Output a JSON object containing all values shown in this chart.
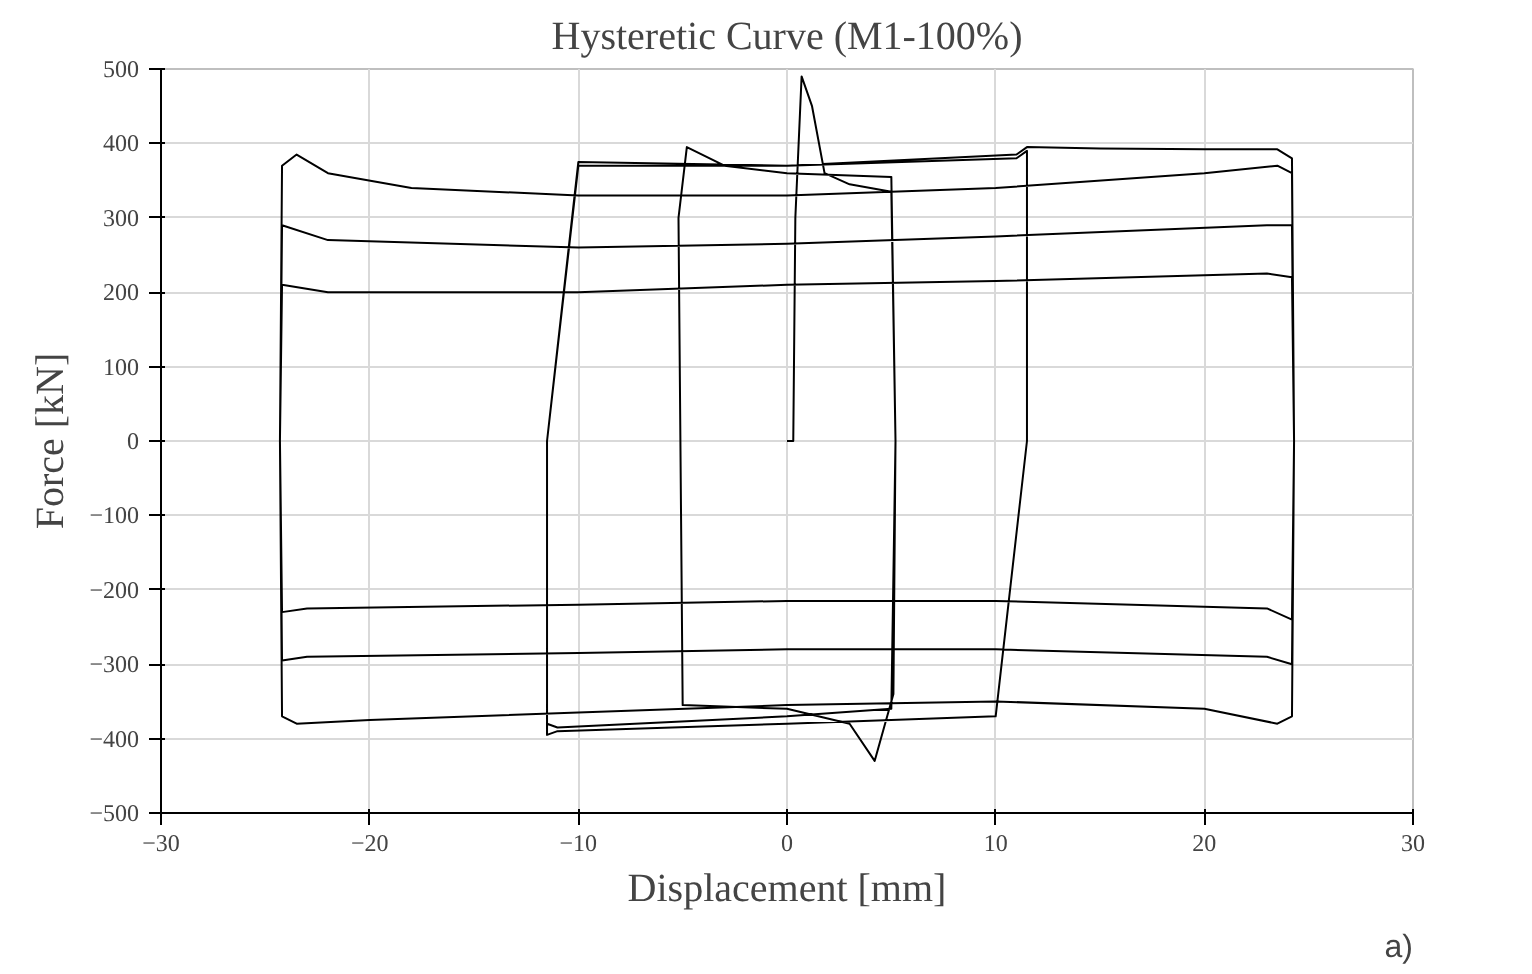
{
  "chart_data": {
    "type": "line",
    "title": "Hysteretic Curve (M1-100%)",
    "xlabel": "Displacement [mm]",
    "ylabel": "Force [kN]",
    "annotations": [
      "a)"
    ],
    "xlim": [
      -30,
      30
    ],
    "ylim": [
      -500,
      500
    ],
    "xticks": [
      -30,
      -20,
      -10,
      0,
      10,
      20,
      30
    ],
    "yticks": [
      -500,
      -400,
      -300,
      -200,
      -100,
      0,
      100,
      200,
      300,
      400,
      500
    ],
    "grid": true,
    "marker": "none",
    "line_style": "solid",
    "series": [
      {
        "color": "#000000",
        "x": [
          0,
          0.3,
          0.4,
          0.7,
          1.2,
          1.8,
          3,
          5,
          5.2,
          5.1,
          4.2,
          3,
          0,
          -5,
          -5.2,
          -4.8,
          -3,
          0,
          5,
          5.2,
          5.0,
          0,
          -11,
          -11.5,
          -11.5,
          -10,
          0,
          11,
          11.5,
          11.5,
          10,
          0,
          -11,
          -11.5,
          -11.5,
          -10,
          0,
          11,
          11.5,
          15,
          20,
          23.5,
          24.2,
          24.3,
          24.2,
          23.5,
          20,
          10,
          0,
          -10,
          -20,
          -23.5,
          -24.2,
          -24.3,
          -24.2,
          -23.5,
          -22,
          -18,
          -10,
          0,
          10,
          20,
          23.5,
          24.2,
          24.3,
          24.2,
          23,
          10,
          0,
          -10,
          -23,
          -24.2,
          -24.3,
          -24.2,
          -22,
          -10,
          0,
          10,
          23,
          24.2,
          24.3,
          24.2,
          23,
          10,
          0,
          -10,
          -23,
          -24.2,
          -24.3,
          -24.2,
          -22,
          -10,
          0,
          10,
          23,
          24.2,
          24.3
        ],
        "values": [
          0,
          0,
          300,
          490,
          450,
          360,
          345,
          335,
          0,
          -340,
          -430,
          -380,
          -360,
          -355,
          300,
          395,
          370,
          360,
          355,
          0,
          -360,
          -370,
          -385,
          -380,
          0,
          375,
          370,
          380,
          390,
          0,
          -370,
          -380,
          -390,
          -395,
          0,
          370,
          370,
          385,
          395,
          393,
          392,
          392,
          380,
          0,
          -370,
          -380,
          -360,
          -350,
          -355,
          -365,
          -375,
          -380,
          -370,
          0,
          370,
          385,
          360,
          340,
          330,
          330,
          340,
          360,
          370,
          360,
          0,
          -300,
          -290,
          -280,
          -280,
          -285,
          -290,
          -295,
          0,
          290,
          270,
          260,
          265,
          275,
          290,
          290,
          0,
          -240,
          -225,
          -215,
          -215,
          -220,
          -225,
          -230,
          0,
          210,
          200,
          200,
          210,
          215,
          225,
          220,
          0
        ]
      }
    ]
  }
}
